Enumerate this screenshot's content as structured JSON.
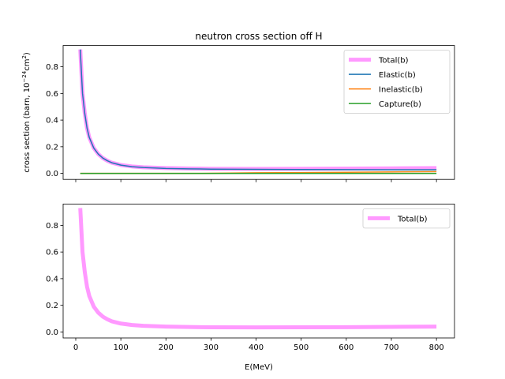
{
  "chart_data": [
    {
      "type": "line",
      "title": "neutron cross section off H",
      "ylabel": "cross section (barn, 10",
      "ylabel_exp": "−24",
      "ylabel_unit": "cm",
      "ylabel_unit_exp": "2",
      "ylabel_close": ")",
      "xlabel": "",
      "xlim": [
        -28,
        840
      ],
      "ylim": [
        -0.045,
        0.96
      ],
      "x_ticks": [
        0,
        100,
        200,
        300,
        400,
        500,
        600,
        700,
        800
      ],
      "y_ticks": [
        0.0,
        0.2,
        0.4,
        0.6,
        0.8
      ],
      "y_tick_labels": [
        "0.0",
        "0.2",
        "0.4",
        "0.6",
        "0.8"
      ],
      "show_x_tick_labels": false,
      "grid": false,
      "legend_position": "top-right",
      "series": [
        {
          "name": "Total(b)",
          "color": "#ff99ff",
          "width": "thick",
          "x": [
            10,
            15,
            20,
            25,
            30,
            40,
            50,
            60,
            70,
            80,
            100,
            125,
            150,
            200,
            250,
            300,
            400,
            500,
            600,
            700,
            800
          ],
          "y": [
            0.93,
            0.6,
            0.45,
            0.34,
            0.27,
            0.19,
            0.145,
            0.115,
            0.095,
            0.08,
            0.063,
            0.052,
            0.046,
            0.04,
            0.037,
            0.035,
            0.034,
            0.035,
            0.036,
            0.038,
            0.04
          ]
        },
        {
          "name": "Elastic(b)",
          "color": "#1f77b4",
          "width": "normal",
          "x": [
            10,
            15,
            20,
            25,
            30,
            40,
            50,
            60,
            70,
            80,
            100,
            125,
            150,
            200,
            250,
            300,
            400,
            500,
            600,
            700,
            800
          ],
          "y": [
            0.93,
            0.6,
            0.45,
            0.34,
            0.27,
            0.19,
            0.145,
            0.115,
            0.095,
            0.08,
            0.062,
            0.05,
            0.044,
            0.037,
            0.034,
            0.032,
            0.03,
            0.029,
            0.028,
            0.027,
            0.027
          ]
        },
        {
          "name": "Inelastic(b)",
          "color": "#ff7f0e",
          "width": "normal",
          "x": [
            10,
            100,
            200,
            280,
            300,
            400,
            500,
            600,
            700,
            800
          ],
          "y": [
            0.0,
            0.0,
            0.0,
            0.0,
            0.001,
            0.004,
            0.006,
            0.008,
            0.011,
            0.013
          ]
        },
        {
          "name": "Capture(b)",
          "color": "#2ca02c",
          "width": "normal",
          "x": [
            10,
            800
          ],
          "y": [
            0.0,
            0.0
          ]
        }
      ]
    },
    {
      "type": "line",
      "title": "",
      "ylabel": "",
      "xlabel": "E(MeV)",
      "xlim": [
        -28,
        840
      ],
      "ylim": [
        -0.045,
        0.96
      ],
      "x_ticks": [
        0,
        100,
        200,
        300,
        400,
        500,
        600,
        700,
        800
      ],
      "x_tick_labels": [
        "0",
        "100",
        "200",
        "300",
        "400",
        "500",
        "600",
        "700",
        "800"
      ],
      "y_ticks": [
        0.0,
        0.2,
        0.4,
        0.6,
        0.8
      ],
      "y_tick_labels": [
        "0.0",
        "0.2",
        "0.4",
        "0.6",
        "0.8"
      ],
      "show_x_tick_labels": true,
      "grid": false,
      "legend_position": "top-right",
      "series": [
        {
          "name": "Total(b)",
          "color": "#ff99ff",
          "width": "thick",
          "x": [
            10,
            15,
            20,
            25,
            30,
            40,
            50,
            60,
            70,
            80,
            100,
            125,
            150,
            200,
            250,
            300,
            400,
            500,
            600,
            700,
            800
          ],
          "y": [
            0.93,
            0.6,
            0.45,
            0.34,
            0.27,
            0.19,
            0.145,
            0.115,
            0.095,
            0.08,
            0.063,
            0.052,
            0.046,
            0.04,
            0.037,
            0.035,
            0.034,
            0.035,
            0.036,
            0.038,
            0.04
          ]
        }
      ]
    }
  ]
}
